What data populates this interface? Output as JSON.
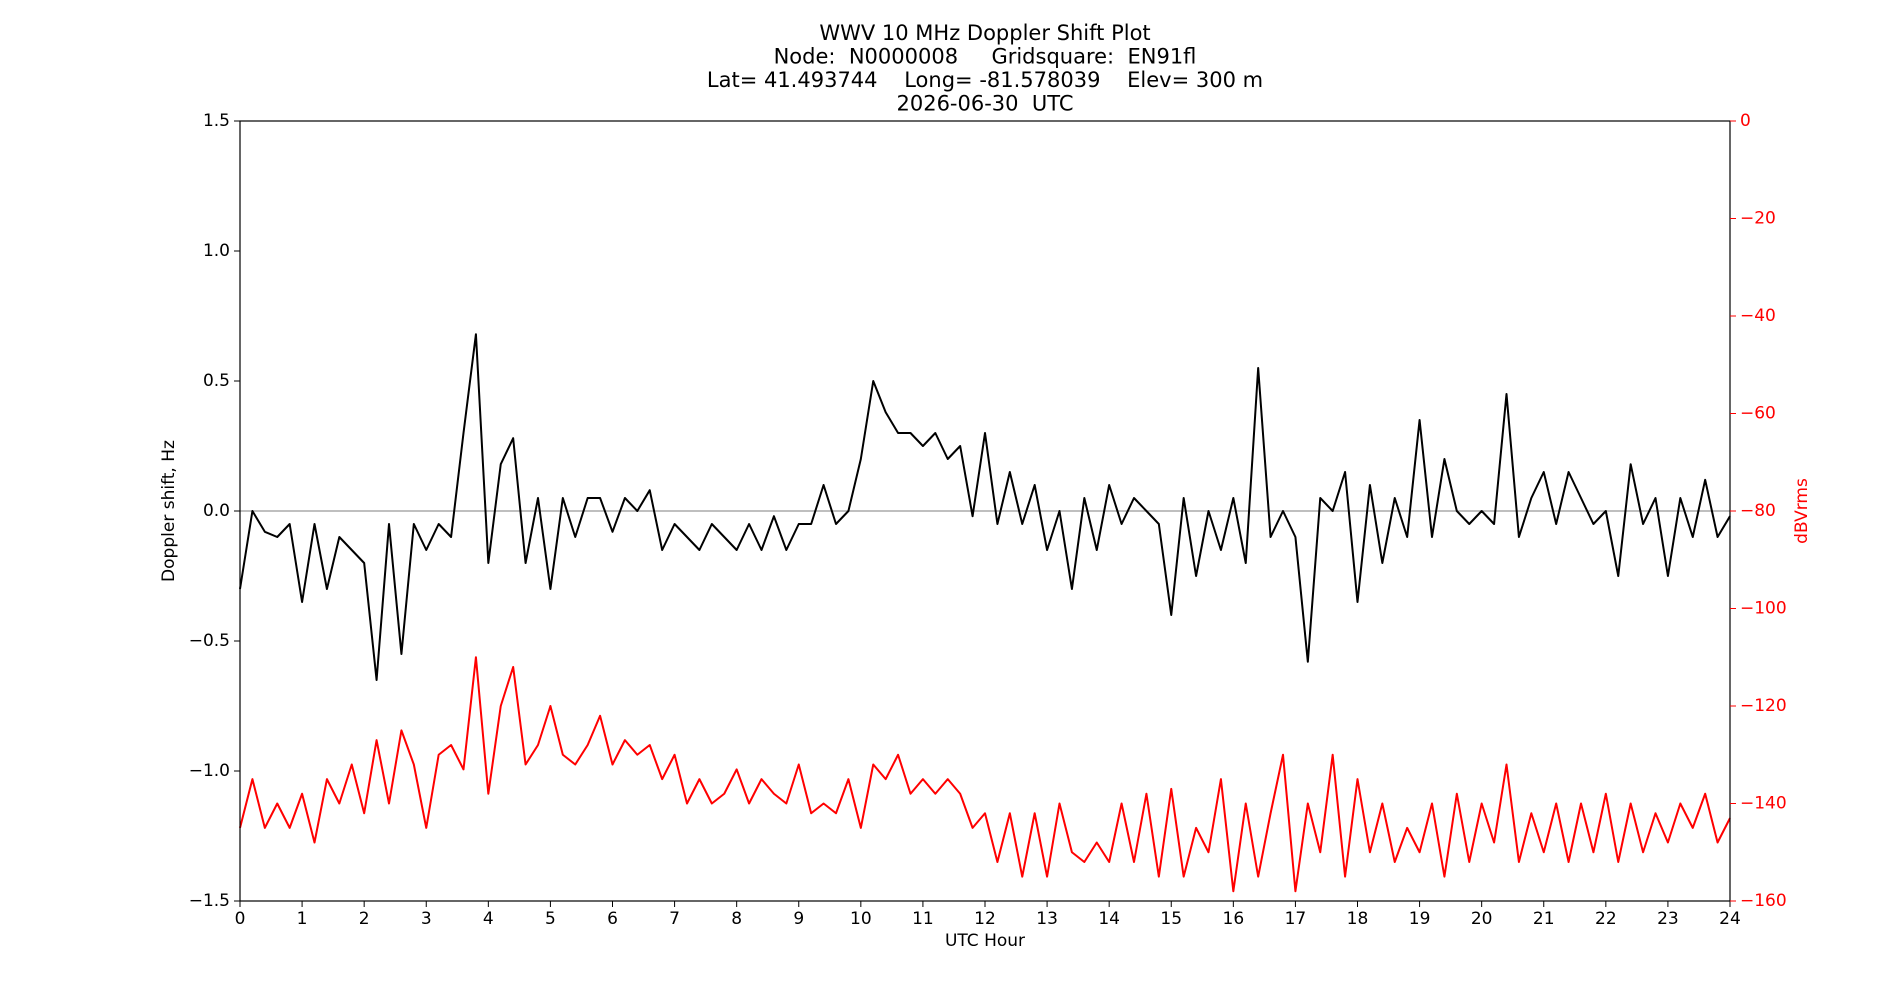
{
  "chart_data": {
    "type": "line",
    "title_lines": [
      "WWV 10 MHz Doppler Shift Plot",
      "Node:  N0000008     Gridsquare:  EN91fl",
      "Lat= 41.493744    Long= -81.578039    Elev= 300 m",
      "2026-06-30  UTC"
    ],
    "xlabel": "UTC Hour",
    "ylabel": "Doppler shift, Hz",
    "y2label": "dBVrms",
    "y2color": "#ff0000",
    "x": [
      0,
      0.2,
      0.4,
      0.6,
      0.8,
      1,
      1.2,
      1.4,
      1.6,
      1.8,
      2,
      2.2,
      2.4,
      2.6,
      2.8,
      3,
      3.2,
      3.4,
      3.6,
      3.8,
      4,
      4.2,
      4.4,
      4.6,
      4.8,
      5,
      5.2,
      5.4,
      5.6,
      5.8,
      6,
      6.2,
      6.4,
      6.6,
      6.8,
      7,
      7.2,
      7.4,
      7.6,
      7.8,
      8,
      8.2,
      8.4,
      8.6,
      8.8,
      9,
      9.2,
      9.4,
      9.6,
      9.8,
      10,
      10.2,
      10.4,
      10.6,
      10.8,
      11,
      11.2,
      11.4,
      11.6,
      11.8,
      12,
      12.2,
      12.4,
      12.6,
      12.8,
      13,
      13.2,
      13.4,
      13.6,
      13.8,
      14,
      14.2,
      14.4,
      14.6,
      14.8,
      15,
      15.2,
      15.4,
      15.6,
      15.8,
      16,
      16.2,
      16.4,
      16.6,
      16.8,
      17,
      17.2,
      17.4,
      17.6,
      17.8,
      18,
      18.2,
      18.4,
      18.6,
      18.8,
      19,
      19.2,
      19.4,
      19.6,
      19.8,
      20,
      20.2,
      20.4,
      20.6,
      20.8,
      21,
      21.2,
      21.4,
      21.6,
      21.8,
      22,
      22.2,
      22.4,
      22.6,
      22.8,
      23,
      23.2,
      23.4,
      23.6,
      23.8,
      24
    ],
    "series": [
      {
        "name": "Doppler shift",
        "color": "#000000",
        "axis": "y",
        "values": [
          -0.3,
          0,
          -0.08,
          -0.1,
          -0.05,
          -0.35,
          -0.05,
          -0.3,
          -0.1,
          -0.15,
          -0.2,
          -0.65,
          -0.05,
          -0.55,
          -0.05,
          -0.15,
          -0.05,
          -0.1,
          0.3,
          0.68,
          -0.2,
          0.18,
          0.28,
          -0.2,
          0.05,
          -0.3,
          0.05,
          -0.1,
          0.05,
          0.05,
          -0.08,
          0.05,
          0,
          0.08,
          -0.15,
          -0.05,
          -0.1,
          -0.15,
          -0.05,
          -0.1,
          -0.15,
          -0.05,
          -0.15,
          -0.02,
          -0.15,
          -0.05,
          -0.05,
          0.1,
          -0.05,
          0,
          0.2,
          0.5,
          0.38,
          0.3,
          0.3,
          0.25,
          0.3,
          0.2,
          0.25,
          -0.02,
          0.3,
          -0.05,
          0.15,
          -0.05,
          0.1,
          -0.15,
          0,
          -0.3,
          0.05,
          -0.15,
          0.1,
          -0.05,
          0.05,
          0,
          -0.05,
          -0.4,
          0.05,
          -0.25,
          0,
          -0.15,
          0.05,
          -0.2,
          0.55,
          -0.1,
          0,
          -0.1,
          -0.58,
          0.05,
          0,
          0.15,
          -0.35,
          0.1,
          -0.2,
          0.05,
          -0.1,
          0.35,
          -0.1,
          0.2,
          0,
          -0.05,
          0,
          -0.05,
          0.45,
          -0.1,
          0.05,
          0.15,
          -0.05,
          0.15,
          0.05,
          -0.05,
          0,
          -0.25,
          0.18,
          -0.05,
          0.05,
          -0.25,
          0.05,
          -0.1,
          0.12,
          -0.1,
          -0.02
        ]
      },
      {
        "name": "dBVrms",
        "color": "#ff0000",
        "axis": "y2",
        "values": [
          -145,
          -135,
          -145,
          -140,
          -145,
          -138,
          -148,
          -135,
          -140,
          -132,
          -142,
          -127,
          -140,
          -125,
          -132,
          -145,
          -130,
          -128,
          -133,
          -110,
          -138,
          -120,
          -112,
          -132,
          -128,
          -120,
          -130,
          -132,
          -128,
          -122,
          -132,
          -127,
          -130,
          -128,
          -135,
          -130,
          -140,
          -135,
          -140,
          -138,
          -133,
          -140,
          -135,
          -138,
          -140,
          -132,
          -142,
          -140,
          -142,
          -135,
          -145,
          -132,
          -135,
          -130,
          -138,
          -135,
          -138,
          -135,
          -138,
          -145,
          -142,
          -152,
          -142,
          -155,
          -142,
          -155,
          -140,
          -150,
          -152,
          -148,
          -152,
          -140,
          -152,
          -138,
          -155,
          -137,
          -155,
          -145,
          -150,
          -135,
          -158,
          -140,
          -155,
          -142,
          -130,
          -158,
          -140,
          -150,
          -130,
          -155,
          -135,
          -150,
          -140,
          -152,
          -145,
          -150,
          -140,
          -155,
          -138,
          -152,
          -140,
          -148,
          -132,
          -152,
          -142,
          -150,
          -140,
          -152,
          -140,
          -150,
          -138,
          -152,
          -140,
          -150,
          -142,
          -148,
          -140,
          -145,
          -138,
          -148,
          -143
        ]
      }
    ],
    "xlim": [
      0,
      24
    ],
    "xticks": [
      0,
      1,
      2,
      3,
      4,
      5,
      6,
      7,
      8,
      9,
      10,
      11,
      12,
      13,
      14,
      15,
      16,
      17,
      18,
      19,
      20,
      21,
      22,
      23,
      24
    ],
    "ylim": [
      -1.5,
      1.5
    ],
    "yticks": [
      {
        "value": -1.5,
        "label": "−1.5"
      },
      {
        "value": -1,
        "label": "−1.0"
      },
      {
        "value": -0.5,
        "label": "−0.5"
      },
      {
        "value": 0,
        "label": "0.0"
      },
      0.5,
      {
        "value": 1,
        "label": "1.0"
      },
      1.5
    ],
    "y2lim": [
      -160,
      0
    ],
    "y2ticks": [
      {
        "value": -160,
        "label": "−160"
      },
      {
        "value": -140,
        "label": "−140"
      },
      {
        "value": -120,
        "label": "−120"
      },
      {
        "value": -100,
        "label": "−100"
      },
      {
        "value": -80,
        "label": "−80"
      },
      {
        "value": -60,
        "label": "−60"
      },
      {
        "value": -40,
        "label": "−40"
      },
      {
        "value": -20,
        "label": "−20"
      },
      0
    ],
    "hlines": [
      {
        "value": 0,
        "color": "#aaaaaa"
      }
    ]
  }
}
